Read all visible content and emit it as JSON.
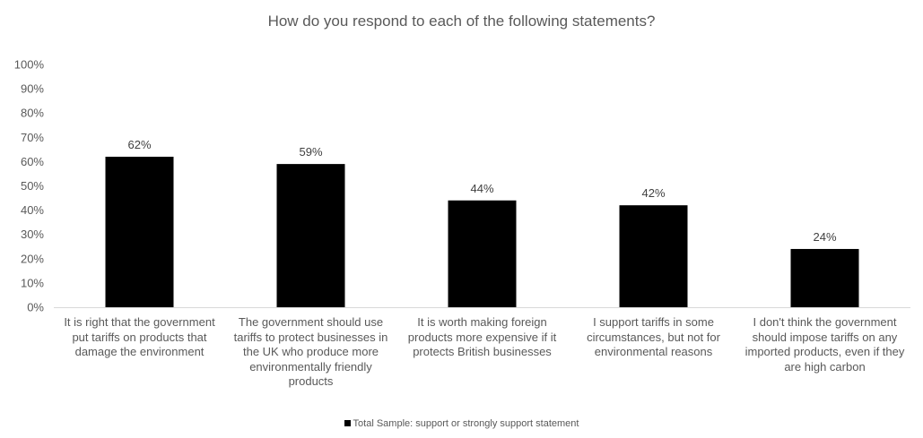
{
  "chart_data": {
    "type": "bar",
    "title": "How do you respond to each of the following statements?",
    "categories": [
      "It is right that the government put tariffs on products that damage the environment",
      "The government should use tariffs to protect businesses in the UK who produce more environmentally friendly products",
      "It is worth making foreign products more expensive if it protects British businesses",
      "I support tariffs in some circumstances, but not for environmental reasons",
      "I don't think the government should impose tariffs on any imported products, even if they are high carbon"
    ],
    "series": [
      {
        "name": "Total Sample: support or strongly support statement",
        "values": [
          62,
          59,
          44,
          42,
          24
        ],
        "value_labels": [
          "62%",
          "59%",
          "44%",
          "42%",
          "24%"
        ],
        "color": "#000000"
      }
    ],
    "y_ticks": [
      "0%",
      "10%",
      "20%",
      "30%",
      "40%",
      "50%",
      "60%",
      "70%",
      "80%",
      "90%",
      "100%"
    ],
    "ylim": [
      0,
      100
    ],
    "xlabel": "",
    "ylabel": "",
    "grid": false,
    "legend_position": "bottom"
  }
}
